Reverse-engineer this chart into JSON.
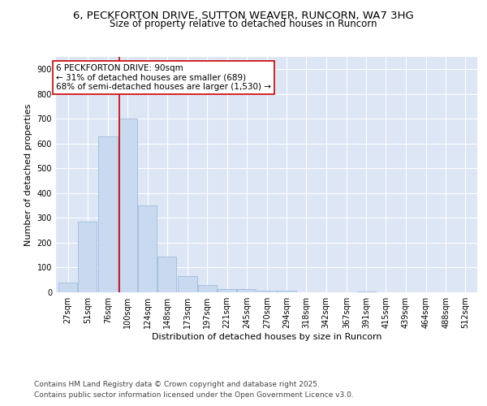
{
  "title_line1": "6, PECKFORTON DRIVE, SUTTON WEAVER, RUNCORN, WA7 3HG",
  "title_line2": "Size of property relative to detached houses in Runcorn",
  "xlabel": "Distribution of detached houses by size in Runcorn",
  "ylabel": "Number of detached properties",
  "bins": [
    27,
    51,
    76,
    100,
    124,
    148,
    173,
    197,
    221,
    245,
    270,
    294,
    318,
    342,
    367,
    391,
    415,
    439,
    464,
    488,
    512
  ],
  "values": [
    40,
    285,
    630,
    700,
    350,
    145,
    65,
    30,
    13,
    12,
    8,
    5,
    0,
    0,
    0,
    4,
    0,
    0,
    0,
    0,
    0
  ],
  "bar_color": "#c9daf0",
  "bar_edge_color": "#a0bcdb",
  "vline_x": 90,
  "vline_color": "#cc0000",
  "annotation_text": "6 PECKFORTON DRIVE: 90sqm\n← 31% of detached houses are smaller (689)\n68% of semi-detached houses are larger (1,530) →",
  "annotation_box_facecolor": "#ffffff",
  "annotation_box_edgecolor": "#cc0000",
  "ylim": [
    0,
    950
  ],
  "yticks": [
    0,
    100,
    200,
    300,
    400,
    500,
    600,
    700,
    800,
    900
  ],
  "background_color": "#dce6f5",
  "footer_line1": "Contains HM Land Registry data © Crown copyright and database right 2025.",
  "footer_line2": "Contains public sector information licensed under the Open Government Licence v3.0.",
  "title_fontsize": 9.5,
  "subtitle_fontsize": 8.5,
  "axis_label_fontsize": 8,
  "tick_fontsize": 7,
  "annotation_fontsize": 7.5,
  "footer_fontsize": 6.5
}
